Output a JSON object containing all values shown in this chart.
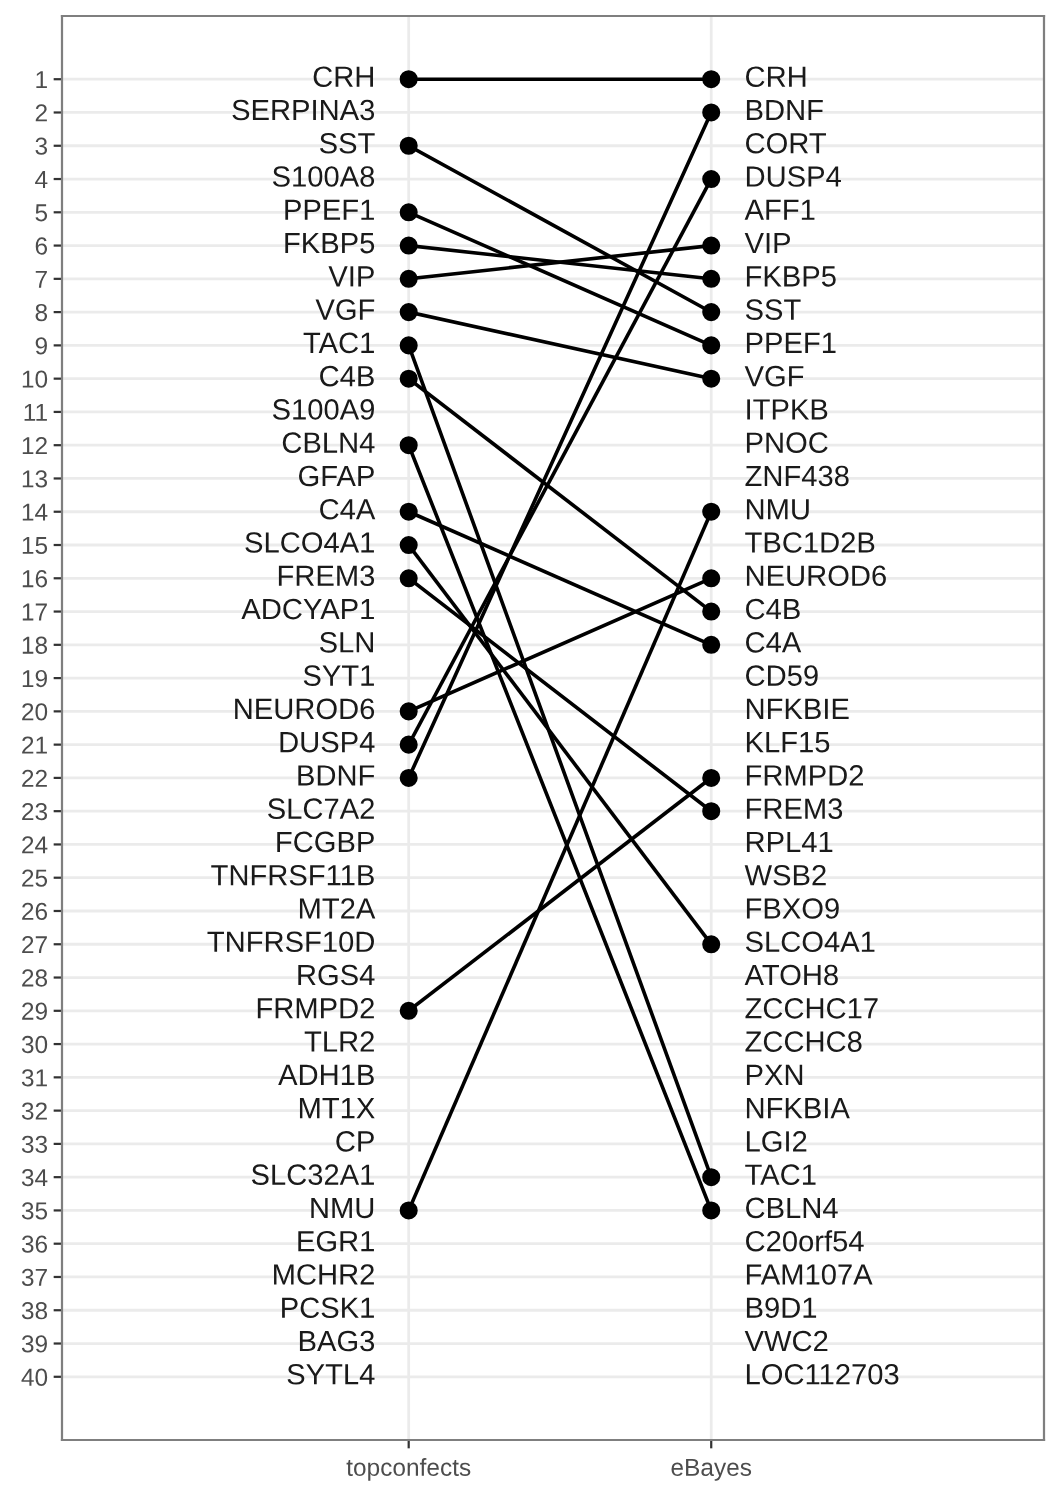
{
  "chart_data": {
    "type": "line",
    "categories": [
      "topconfects",
      "eBayes"
    ],
    "ylim": [
      41.9,
      -0.9
    ],
    "yticks": [
      1,
      2,
      3,
      4,
      5,
      6,
      7,
      8,
      9,
      10,
      11,
      12,
      13,
      14,
      15,
      16,
      17,
      18,
      19,
      20,
      21,
      22,
      23,
      24,
      25,
      26,
      27,
      28,
      29,
      30,
      31,
      32,
      33,
      34,
      35,
      36,
      37,
      38,
      39,
      40
    ],
    "grid": true,
    "marker": "circle",
    "line_style": "solid",
    "series": [
      {
        "color": "#000000",
        "values": [
          1,
          1
        ]
      },
      {
        "color": "#000000",
        "values": [
          3,
          8
        ]
      },
      {
        "color": "#000000",
        "values": [
          5,
          9
        ]
      },
      {
        "color": "#000000",
        "values": [
          6,
          7
        ]
      },
      {
        "color": "#000000",
        "values": [
          7,
          6
        ]
      },
      {
        "color": "#000000",
        "values": [
          8,
          10
        ]
      },
      {
        "color": "#000000",
        "values": [
          9,
          34
        ]
      },
      {
        "color": "#000000",
        "values": [
          10,
          17
        ]
      },
      {
        "color": "#000000",
        "values": [
          12,
          35
        ]
      },
      {
        "color": "#000000",
        "values": [
          14,
          18
        ]
      },
      {
        "color": "#000000",
        "values": [
          15,
          27
        ]
      },
      {
        "color": "#000000",
        "values": [
          16,
          23
        ]
      },
      {
        "color": "#000000",
        "values": [
          20,
          16
        ]
      },
      {
        "color": "#000000",
        "values": [
          21,
          4
        ]
      },
      {
        "color": "#000000",
        "values": [
          22,
          2
        ]
      },
      {
        "color": "#000000",
        "values": [
          29,
          22
        ]
      },
      {
        "color": "#000000",
        "values": [
          35,
          14
        ]
      }
    ],
    "annotations": [
      "CRH",
      "SERPINA3",
      "SST",
      "S100A8",
      "PPEF1",
      "FKBP5",
      "VIP",
      "VGF",
      "TAC1",
      "C4B",
      "S100A9",
      "CBLN4",
      "GFAP",
      "C4A",
      "SLCO4A1",
      "FREM3",
      "ADCYAP1",
      "SLN",
      "SYT1",
      "NEUROD6",
      "DUSP4",
      "BDNF",
      "SLC7A2",
      "FCGBP",
      "TNFRSF11B",
      "MT2A",
      "TNFRSF10D",
      "RGS4",
      "FRMPD2",
      "TLR2",
      "ADH1B",
      "MT1X",
      "CP",
      "SLC32A1",
      "NMU",
      "EGR1",
      "MCHR2",
      "PCSK1",
      "BAG3",
      "SYTL4",
      "CRH",
      "BDNF",
      "CORT",
      "DUSP4",
      "AFF1",
      "VIP",
      "FKBP5",
      "SST",
      "PPEF1",
      "VGF",
      "ITPKB",
      "PNOC",
      "ZNF438",
      "NMU",
      "TBC1D2B",
      "NEUROD6",
      "C4B",
      "C4A",
      "CD59",
      "NFKBIE",
      "KLF15",
      "FRMPD2",
      "FREM3",
      "RPL41",
      "WSB2",
      "FBXO9",
      "SLCO4A1",
      "ATOH8",
      "ZCCHC17",
      "ZCCHC8",
      "PXN",
      "NFKBIA",
      "LGI2",
      "TAC1",
      "CBLN4",
      "C20orf54",
      "FAM107A",
      "B9D1",
      "VWC2",
      "LOC112703"
    ]
  }
}
